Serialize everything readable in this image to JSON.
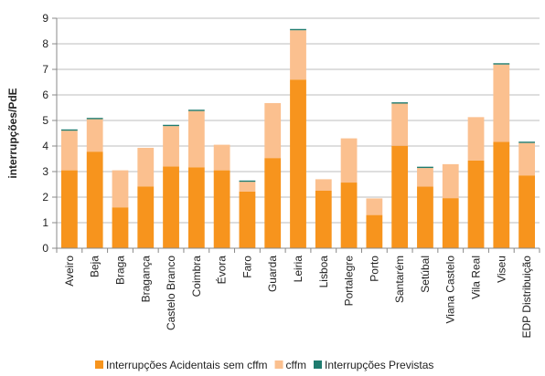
{
  "chart_data": {
    "type": "bar",
    "stacked": true,
    "title": "",
    "xlabel": "",
    "ylabel": "interrupções/PdE",
    "ylim": [
      0,
      9
    ],
    "yticks": [
      0,
      1,
      2,
      3,
      4,
      5,
      6,
      7,
      8,
      9
    ],
    "grid": true,
    "legend_position": "bottom",
    "categories": [
      "Aveiro",
      "Beja",
      "Braga",
      "Bragança",
      "Castelo Branco",
      "Coimbra",
      "Évora",
      "Faro",
      "Guarda",
      "Leiria",
      "Lisboa",
      "Portalegre",
      "Porto",
      "Santarém",
      "Setúbal",
      "Viana Castelo",
      "Vila Real",
      "Viseu",
      "EDP Distribuição"
    ],
    "series": [
      {
        "name": "Interrupções Acidentais sem cffm",
        "color": "#F7941D",
        "values": [
          3.05,
          3.78,
          1.6,
          2.42,
          3.2,
          3.17,
          3.05,
          2.22,
          3.53,
          6.6,
          2.25,
          2.57,
          1.3,
          4.01,
          2.41,
          1.96,
          3.43,
          4.16,
          2.85
        ]
      },
      {
        "name": "cffm",
        "color": "#FBC08F",
        "values": [
          1.55,
          1.27,
          1.45,
          1.51,
          1.58,
          2.2,
          1.0,
          0.38,
          2.15,
          1.93,
          0.45,
          1.73,
          0.65,
          1.65,
          0.73,
          1.33,
          1.7,
          3.03,
          1.27
        ]
      },
      {
        "name": "Interrupções Previstas",
        "color": "#1E7B6E",
        "values": [
          0.05,
          0.05,
          0.0,
          0.0,
          0.05,
          0.05,
          0.0,
          0.05,
          0.0,
          0.05,
          0.0,
          0.0,
          0.0,
          0.05,
          0.05,
          0.0,
          0.0,
          0.05,
          0.05
        ]
      }
    ]
  }
}
